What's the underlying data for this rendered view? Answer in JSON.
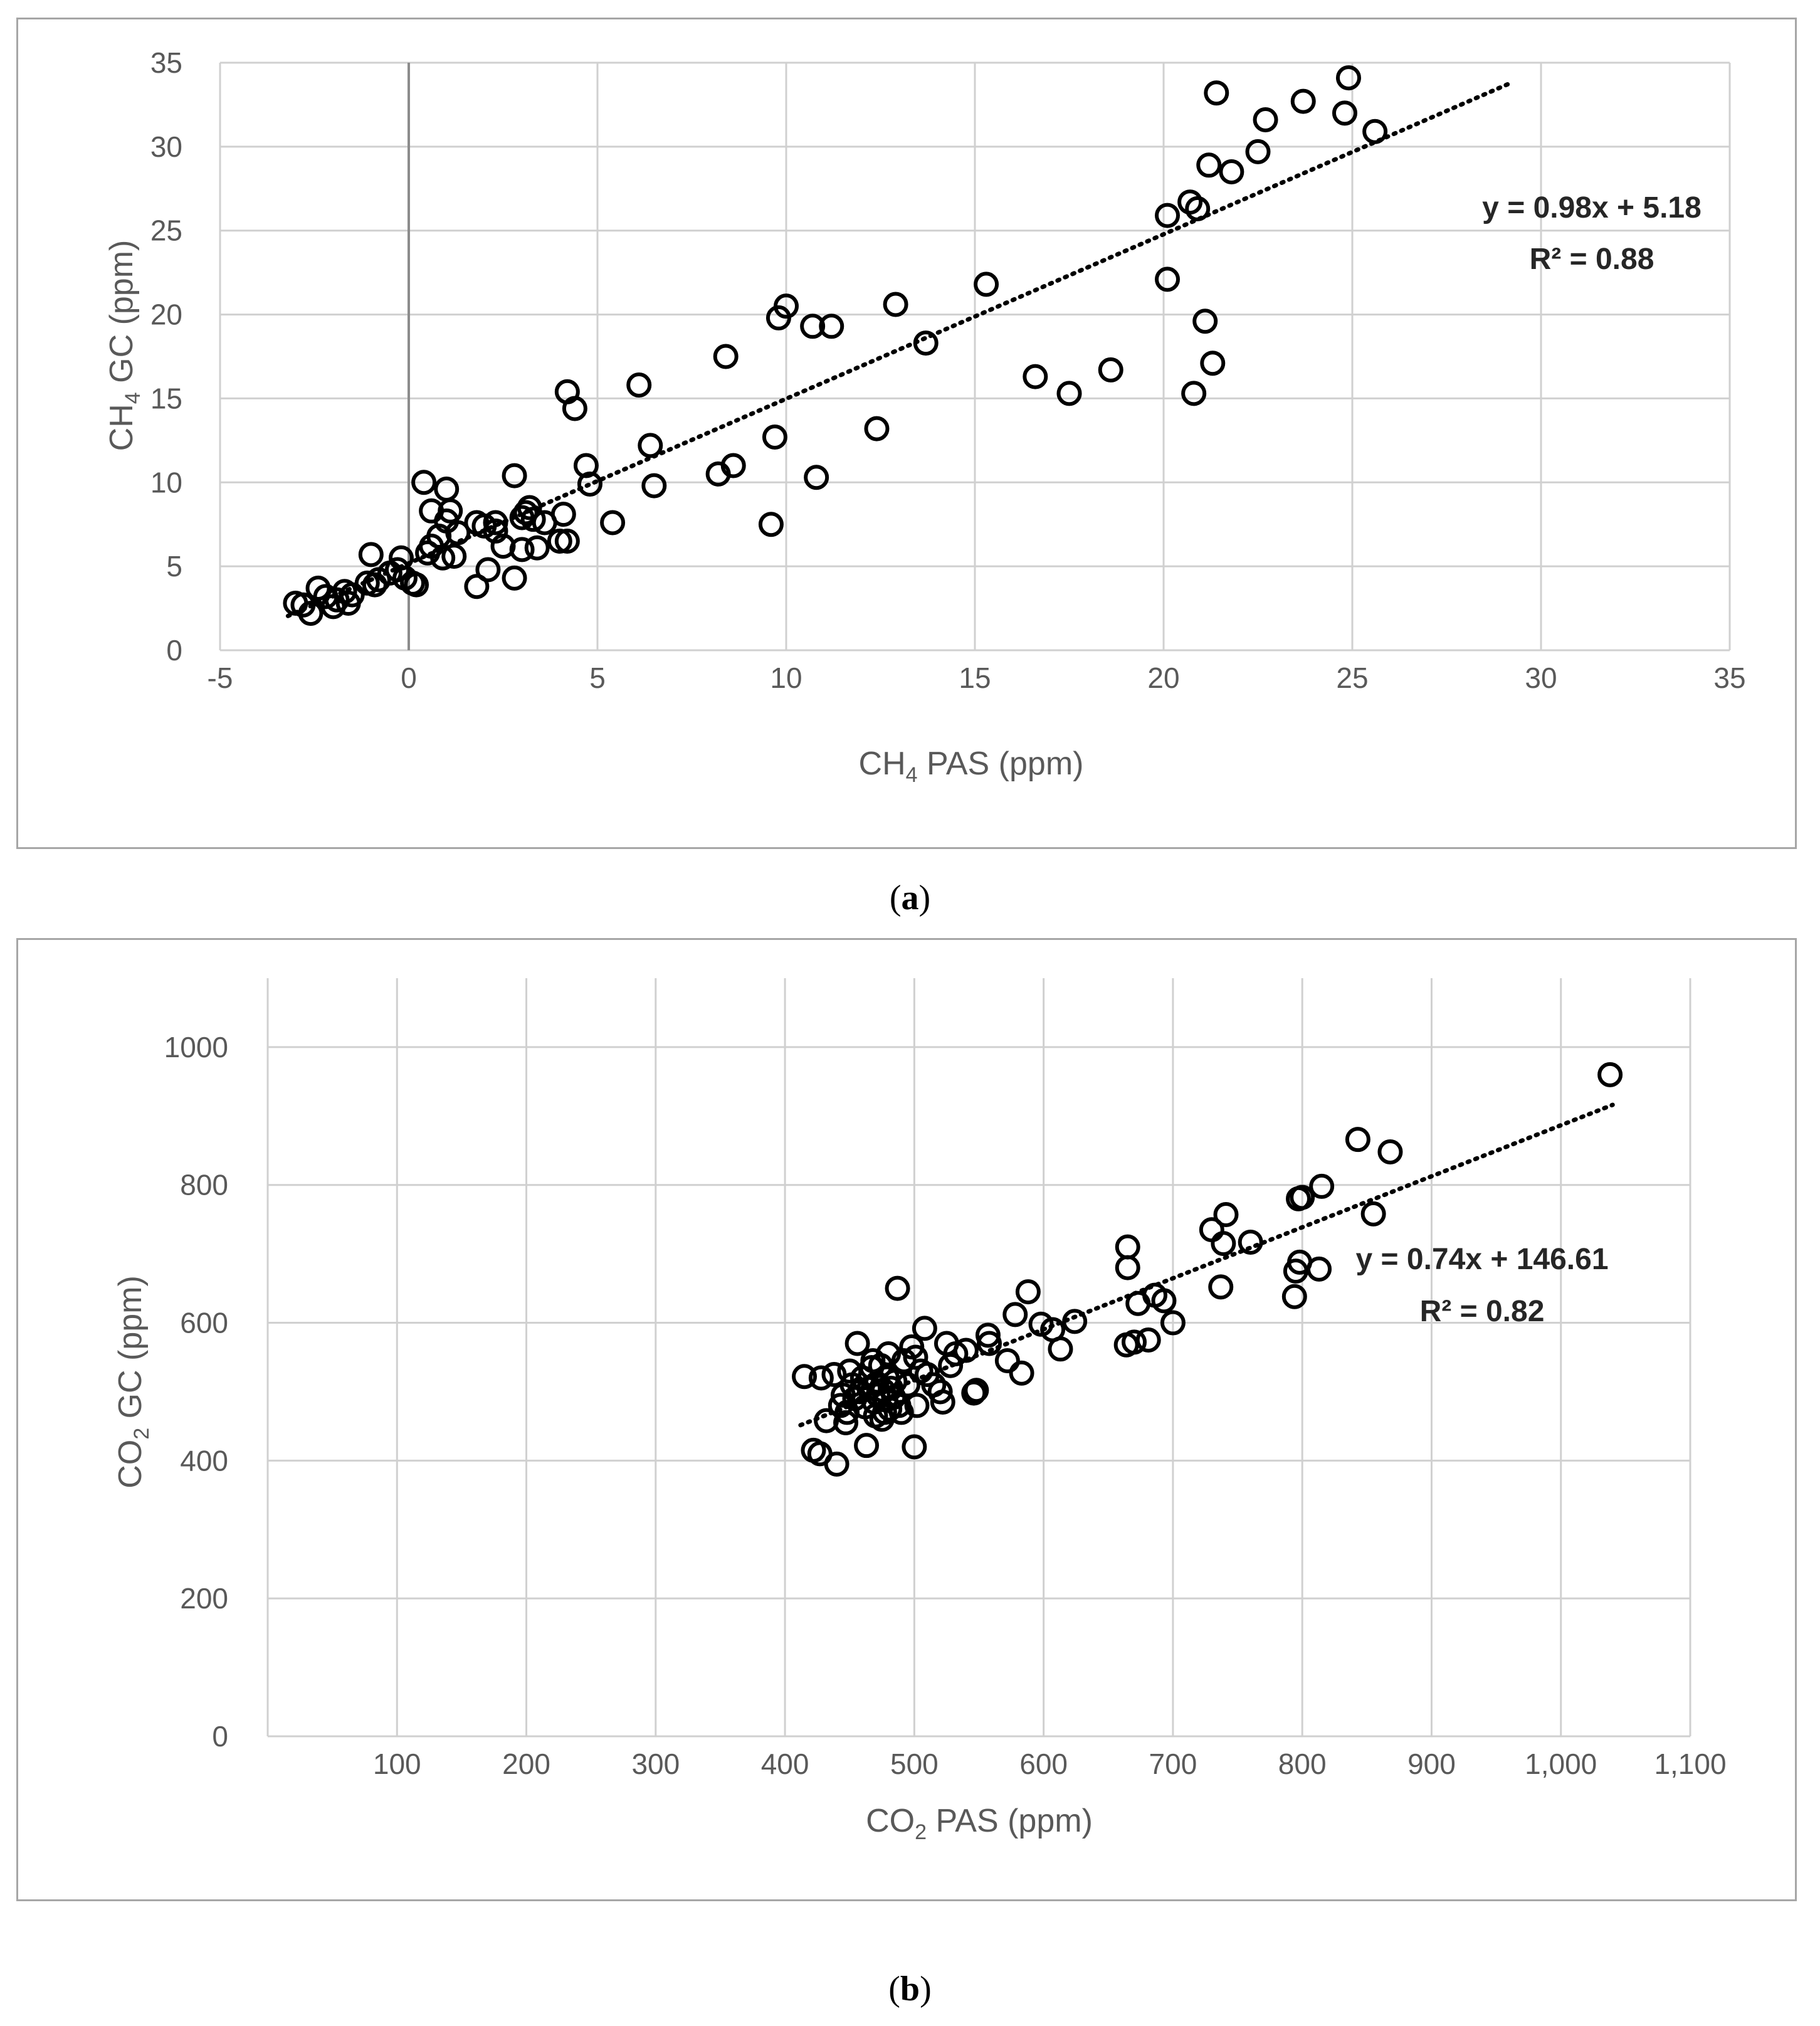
{
  "chart_data": [
    {
      "type": "scatter",
      "panel_label": "a",
      "xlim": [
        -5,
        35
      ],
      "ylim": [
        0,
        35
      ],
      "x_ticks": [
        "-5",
        "0",
        "5",
        "10",
        "15",
        "20",
        "25",
        "30",
        "35"
      ],
      "y_ticks": [
        "0",
        "5",
        "10",
        "15",
        "20",
        "25",
        "30",
        "35"
      ],
      "x_tick_values": [
        -5,
        0,
        5,
        10,
        15,
        20,
        25,
        30,
        35
      ],
      "y_tick_values": [
        0,
        5,
        10,
        15,
        20,
        25,
        30,
        35
      ],
      "xlabel": {
        "pre": "CH",
        "sub": "4",
        "post": " PAS (ppm)"
      },
      "ylabel": {
        "pre": "CH",
        "sub": "4",
        "post": " GC (ppm)"
      },
      "grid": true,
      "trendline": {
        "slope": 0.98,
        "intercept": 5.18,
        "x_range": [
          -3.2,
          29.2
        ],
        "style": "dotted"
      },
      "equation": "y = 0.98x + 5.18",
      "r2_label": "R² = 0.88",
      "points": [
        [
          -3.0,
          2.8
        ],
        [
          -2.8,
          2.7
        ],
        [
          -2.6,
          2.2
        ],
        [
          -2.4,
          3.7
        ],
        [
          -2.2,
          3.2
        ],
        [
          -2.0,
          2.6
        ],
        [
          -1.9,
          3.0
        ],
        [
          -1.7,
          3.5
        ],
        [
          -1.6,
          2.8
        ],
        [
          -1.5,
          3.3
        ],
        [
          -1.1,
          4.0
        ],
        [
          -1.0,
          5.7
        ],
        [
          -0.9,
          3.9
        ],
        [
          -0.8,
          4.2
        ],
        [
          -0.5,
          4.6
        ],
        [
          -0.3,
          4.8
        ],
        [
          -0.2,
          5.5
        ],
        [
          -0.1,
          4.3
        ],
        [
          0.1,
          4.0
        ],
        [
          0.2,
          3.9
        ],
        [
          0.4,
          10.0
        ],
        [
          0.5,
          5.8
        ],
        [
          0.6,
          6.2
        ],
        [
          0.6,
          8.3
        ],
        [
          0.8,
          6.8
        ],
        [
          0.9,
          5.5
        ],
        [
          1.0,
          9.6
        ],
        [
          1.0,
          7.7
        ],
        [
          1.1,
          8.3
        ],
        [
          1.2,
          5.6
        ],
        [
          1.3,
          7.0
        ],
        [
          1.8,
          3.8
        ],
        [
          1.8,
          7.6
        ],
        [
          2.0,
          7.4
        ],
        [
          2.1,
          4.8
        ],
        [
          2.3,
          7.1
        ],
        [
          2.3,
          7.6
        ],
        [
          2.5,
          6.2
        ],
        [
          2.8,
          10.4
        ],
        [
          2.8,
          4.3
        ],
        [
          3.0,
          6.0
        ],
        [
          3.0,
          7.9
        ],
        [
          3.1,
          8.2
        ],
        [
          3.2,
          8.5
        ],
        [
          3.3,
          7.8
        ],
        [
          3.4,
          6.1
        ],
        [
          3.6,
          7.6
        ],
        [
          4.0,
          6.5
        ],
        [
          4.1,
          8.1
        ],
        [
          4.2,
          6.5
        ],
        [
          4.2,
          15.4
        ],
        [
          4.4,
          14.4
        ],
        [
          4.7,
          11.0
        ],
        [
          4.8,
          9.9
        ],
        [
          5.4,
          7.6
        ],
        [
          6.1,
          15.8
        ],
        [
          6.4,
          12.2
        ],
        [
          6.5,
          9.8
        ],
        [
          8.2,
          10.5
        ],
        [
          8.4,
          17.5
        ],
        [
          8.6,
          11.0
        ],
        [
          9.6,
          7.5
        ],
        [
          9.7,
          12.7
        ],
        [
          9.8,
          19.8
        ],
        [
          10.0,
          20.5
        ],
        [
          10.7,
          19.3
        ],
        [
          10.8,
          10.3
        ],
        [
          11.2,
          19.3
        ],
        [
          12.4,
          13.2
        ],
        [
          12.9,
          20.6
        ],
        [
          13.7,
          18.3
        ],
        [
          15.3,
          21.8
        ],
        [
          16.6,
          16.3
        ],
        [
          17.5,
          15.3
        ],
        [
          18.6,
          16.7
        ],
        [
          20.1,
          22.1
        ],
        [
          20.1,
          25.9
        ],
        [
          20.7,
          26.7
        ],
        [
          20.8,
          15.3
        ],
        [
          20.9,
          26.3
        ],
        [
          21.1,
          19.6
        ],
        [
          21.2,
          28.9
        ],
        [
          21.3,
          17.1
        ],
        [
          21.4,
          33.2
        ],
        [
          21.8,
          28.5
        ],
        [
          22.5,
          29.7
        ],
        [
          22.7,
          31.6
        ],
        [
          23.7,
          32.7
        ],
        [
          24.8,
          32.0
        ],
        [
          24.9,
          34.1
        ],
        [
          25.6,
          30.9
        ]
      ]
    },
    {
      "type": "scatter",
      "panel_label": "b",
      "xlim": [
        0,
        1100
      ],
      "ylim": [
        0,
        1100
      ],
      "x_ticks": [
        "100",
        "200",
        "300",
        "400",
        "500",
        "600",
        "700",
        "800",
        "900",
        "1,000",
        "1,100"
      ],
      "y_ticks": [
        "0",
        "200",
        "400",
        "600",
        "800",
        "1000"
      ],
      "x_tick_values": [
        100,
        200,
        300,
        400,
        500,
        600,
        700,
        800,
        900,
        1000,
        1100
      ],
      "y_tick_values": [
        0,
        200,
        400,
        600,
        800,
        1000
      ],
      "xlabel": {
        "pre": "CO",
        "sub": "2",
        "post": " PAS (ppm)"
      },
      "ylabel": {
        "pre": "CO",
        "sub": "2",
        "post": " GC (ppm)"
      },
      "grid": true,
      "trendline": {
        "slope": 0.74,
        "intercept": 146.61,
        "x_range": [
          412,
          1040
        ],
        "style": "dotted"
      },
      "equation": "y = 0.74x + 146.61",
      "r2_label": "R² = 0.82",
      "points": [
        [
          415,
          522
        ],
        [
          422,
          415
        ],
        [
          427,
          410
        ],
        [
          428,
          520
        ],
        [
          432,
          458
        ],
        [
          438,
          525
        ],
        [
          440,
          395
        ],
        [
          443,
          480
        ],
        [
          445,
          495
        ],
        [
          447,
          455
        ],
        [
          448,
          470
        ],
        [
          450,
          530
        ],
        [
          452,
          510
        ],
        [
          454,
          490
        ],
        [
          456,
          570
        ],
        [
          458,
          500
        ],
        [
          460,
          520
        ],
        [
          462,
          478
        ],
        [
          463,
          422
        ],
        [
          465,
          505
        ],
        [
          467,
          535
        ],
        [
          468,
          545
        ],
        [
          469,
          485
        ],
        [
          470,
          465
        ],
        [
          471,
          512
        ],
        [
          472,
          495
        ],
        [
          474,
          538
        ],
        [
          475,
          460
        ],
        [
          476,
          502
        ],
        [
          477,
          470
        ],
        [
          478,
          488
        ],
        [
          479,
          520
        ],
        [
          480,
          555
        ],
        [
          481,
          475
        ],
        [
          482,
          505
        ],
        [
          484,
          492
        ],
        [
          485,
          515
        ],
        [
          487,
          650
        ],
        [
          488,
          480
        ],
        [
          490,
          470
        ],
        [
          492,
          545
        ],
        [
          495,
          510
        ],
        [
          498,
          565
        ],
        [
          500,
          420
        ],
        [
          501,
          550
        ],
        [
          502,
          480
        ],
        [
          505,
          530
        ],
        [
          508,
          592
        ],
        [
          510,
          525
        ],
        [
          515,
          510
        ],
        [
          520,
          500
        ],
        [
          522,
          485
        ],
        [
          525,
          570
        ],
        [
          528,
          538
        ],
        [
          532,
          555
        ],
        [
          540,
          560
        ],
        [
          546,
          498
        ],
        [
          548,
          502
        ],
        [
          557,
          582
        ],
        [
          558,
          570
        ],
        [
          572,
          545
        ],
        [
          578,
          612
        ],
        [
          583,
          527
        ],
        [
          588,
          645
        ],
        [
          598,
          598
        ],
        [
          607,
          590
        ],
        [
          613,
          562
        ],
        [
          624,
          602
        ],
        [
          664,
          568
        ],
        [
          665,
          710
        ],
        [
          665,
          680
        ],
        [
          670,
          572
        ],
        [
          673,
          628
        ],
        [
          681,
          575
        ],
        [
          686,
          640
        ],
        [
          693,
          632
        ],
        [
          700,
          600
        ],
        [
          730,
          735
        ],
        [
          737,
          652
        ],
        [
          739,
          715
        ],
        [
          741,
          757
        ],
        [
          760,
          717
        ],
        [
          794,
          638
        ],
        [
          795,
          675
        ],
        [
          797,
          780
        ],
        [
          798,
          688
        ],
        [
          800,
          782
        ],
        [
          813,
          678
        ],
        [
          815,
          798
        ],
        [
          843,
          866
        ],
        [
          855,
          758
        ],
        [
          868,
          848
        ],
        [
          1038,
          960
        ]
      ]
    }
  ]
}
